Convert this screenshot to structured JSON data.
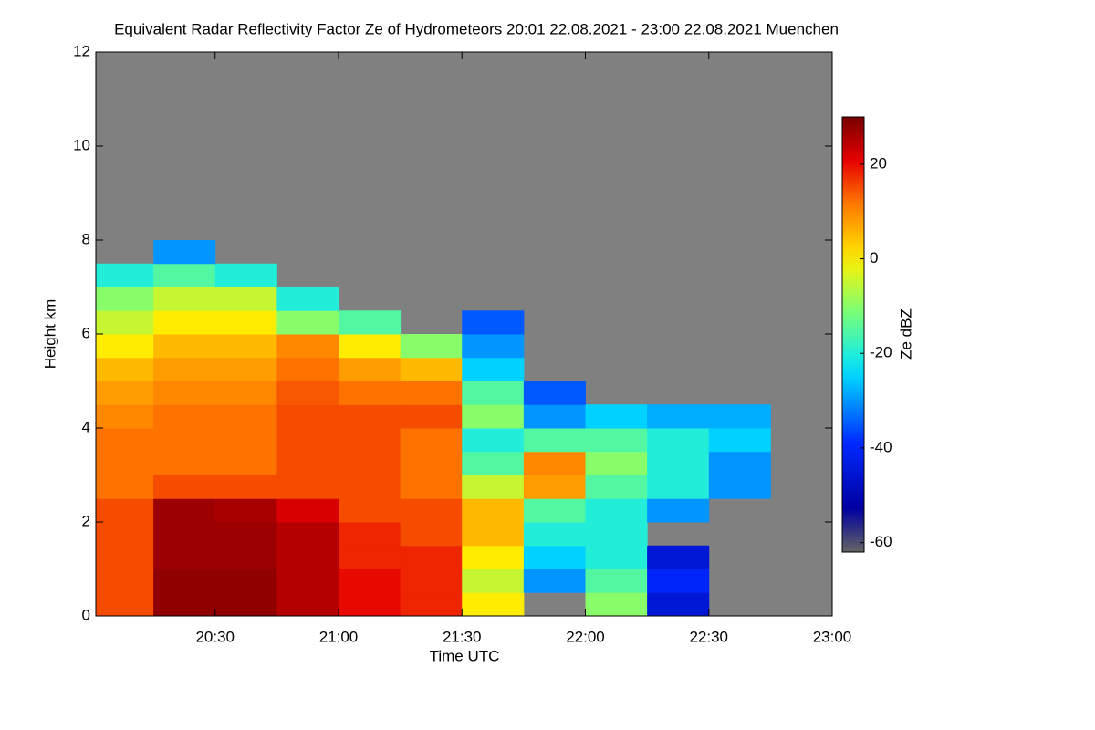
{
  "chart_data": {
    "type": "heatmap",
    "title": "Equivalent Radar Reflectivity Factor Ze of Hydrometeors   20:01 22.08.2021 - 23:00 22.08.2021 Muenchen",
    "x_label": "Time UTC",
    "y_label": "Height km",
    "colorbar_label": "Ze dBZ",
    "xlim": [
      20.0167,
      23.0
    ],
    "xticks": [
      {
        "value": 20.5,
        "label": "20:30"
      },
      {
        "value": 21.0,
        "label": "21:00"
      },
      {
        "value": 21.5,
        "label": "21:30"
      },
      {
        "value": 22.0,
        "label": "22:00"
      },
      {
        "value": 22.5,
        "label": "22:30"
      },
      {
        "value": 23.0,
        "label": "23:00"
      }
    ],
    "ylim": [
      0,
      12
    ],
    "yticks": [
      0,
      2,
      4,
      6,
      8,
      10,
      12
    ],
    "zlim": [
      -62,
      30
    ],
    "zticks": [
      -60,
      -40,
      -20,
      0,
      20
    ],
    "background": "#808080",
    "x_bins": [
      20.0167,
      20.25,
      20.5,
      20.75,
      21.0,
      21.25,
      21.5,
      21.75,
      22.0,
      22.25,
      22.5,
      22.75,
      23.0
    ],
    "y_bins": [
      0,
      0.5,
      1,
      1.5,
      2,
      2.5,
      3,
      3.5,
      4,
      4.5,
      5,
      5.5,
      6,
      6.5,
      7,
      7.5,
      8
    ],
    "z": [
      [
        15,
        28,
        28,
        25,
        20,
        18,
        0,
        null,
        -10,
        -45,
        null,
        null
      ],
      [
        15,
        28,
        28,
        25,
        20,
        18,
        -5,
        -30,
        -15,
        -40,
        null,
        null
      ],
      [
        15,
        27,
        27,
        25,
        18,
        18,
        0,
        -25,
        -20,
        -45,
        null,
        null
      ],
      [
        15,
        27,
        27,
        25,
        18,
        15,
        5,
        -20,
        -20,
        null,
        null,
        null
      ],
      [
        15,
        27,
        26,
        22,
        15,
        15,
        5,
        -15,
        -20,
        -30,
        null,
        null
      ],
      [
        12,
        15,
        15,
        15,
        15,
        12,
        -5,
        8,
        -15,
        -20,
        -30,
        null
      ],
      [
        12,
        12,
        12,
        15,
        15,
        12,
        -15,
        10,
        -10,
        -20,
        -30,
        null
      ],
      [
        12,
        12,
        12,
        15,
        15,
        12,
        -20,
        -15,
        -15,
        -20,
        -25,
        null
      ],
      [
        10,
        12,
        12,
        15,
        15,
        15,
        -10,
        -30,
        -25,
        -28,
        -28,
        null
      ],
      [
        8,
        10,
        10,
        14,
        12,
        12,
        -15,
        -35,
        null,
        null,
        null,
        null
      ],
      [
        5,
        8,
        8,
        12,
        8,
        5,
        -25,
        null,
        null,
        null,
        null,
        null
      ],
      [
        0,
        5,
        5,
        10,
        0,
        -10,
        -30,
        null,
        null,
        null,
        null,
        null
      ],
      [
        -5,
        0,
        0,
        -10,
        -15,
        null,
        -35,
        null,
        null,
        null,
        null,
        null
      ],
      [
        -10,
        -5,
        -5,
        -20,
        null,
        null,
        null,
        null,
        null,
        null,
        null,
        null
      ],
      [
        -20,
        -15,
        -20,
        null,
        null,
        null,
        null,
        null,
        null,
        null,
        null,
        null
      ],
      [
        null,
        -30,
        null,
        null,
        null,
        null,
        null,
        null,
        null,
        null,
        null,
        null
      ]
    ]
  }
}
